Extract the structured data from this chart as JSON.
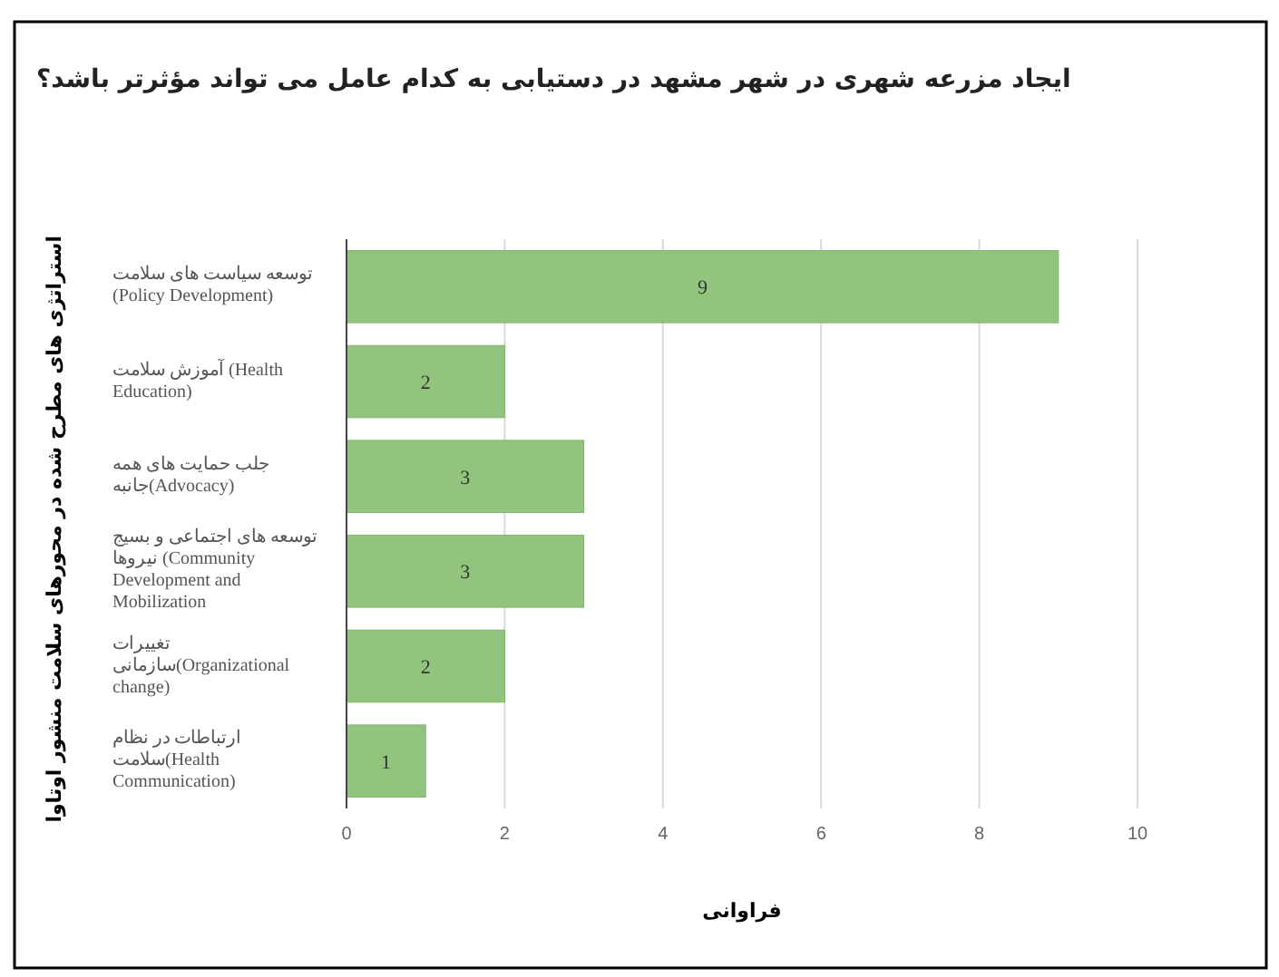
{
  "chart_data": {
    "type": "bar",
    "orientation": "horizontal",
    "title": "ایجاد مزرعه شهری در شهر مشهد در دستیابی به کدام عامل می تواند مؤثرتر باشد؟",
    "xlabel": "فراوانی",
    "ylabel": "استراتژی های مطرح شده در محورهای سلامت منشور اوتاوا",
    "categories": [
      "توسعه سیاست های سلامت (Policy Development)",
      "آموزش سلامت (Health Education)",
      "جلب حمایت های همه جانبه(Advocacy)",
      "توسعه های اجتماعی و بسیج نیروها (Community Development and Mobilization",
      "تغییرات سازمانی(Organizational change)",
      "ارتباطات در نظام سلامت(Health Communication)"
    ],
    "values": [
      9,
      2,
      3,
      3,
      2,
      1
    ],
    "color": "#93c47d",
    "xlim": [
      0,
      10
    ],
    "xticks": [
      0,
      2,
      4,
      6,
      8,
      10
    ],
    "grid": "x",
    "data_labels": true
  }
}
